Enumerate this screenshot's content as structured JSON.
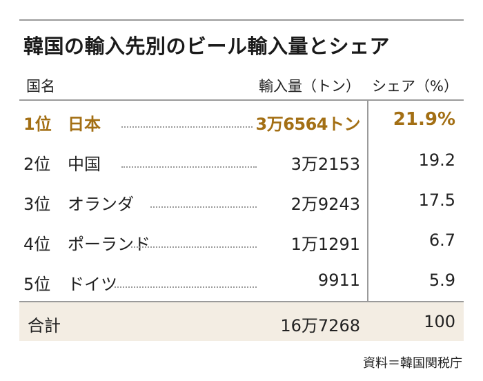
{
  "title": "韓国の輸入先別のビール輸入量とシェア",
  "header": {
    "name": "国名",
    "amount": "輸入量（トン）",
    "share": "シェア（%）"
  },
  "rows": [
    {
      "rank": "1位",
      "country": "日本",
      "amount": "3万6564トン",
      "share": "21.9%"
    },
    {
      "rank": "2位",
      "country": "中国",
      "amount": "3万2153",
      "share": "19.2"
    },
    {
      "rank": "3位",
      "country": "オランダ",
      "amount": "2万9243",
      "share": "17.5"
    },
    {
      "rank": "4位",
      "country": "ポーランド",
      "amount": "1万1291",
      "share": "6.7"
    },
    {
      "rank": "5位",
      "country": "ドイツ",
      "amount": "9911",
      "share": "5.9"
    }
  ],
  "total": {
    "label": "合計",
    "amount": "16万7268",
    "share": "100"
  },
  "source": "資料＝韓国関税庁",
  "colors": {
    "highlight": "#a36f14",
    "total_background": "#f3ede3",
    "rule": "#9a9a9a"
  },
  "chart_data": {
    "type": "table",
    "title": "韓国の輸入先別のビール輸入量とシェア",
    "columns": [
      "国名",
      "輸入量（トン）",
      "シェア（%）"
    ],
    "rows": [
      [
        "日本",
        36564,
        21.9
      ],
      [
        "中国",
        32153,
        19.2
      ],
      [
        "オランダ",
        29243,
        17.5
      ],
      [
        "ポーランド",
        11291,
        6.7
      ],
      [
        "ドイツ",
        9911,
        5.9
      ]
    ],
    "total": [
      "合計",
      167268,
      100
    ]
  }
}
